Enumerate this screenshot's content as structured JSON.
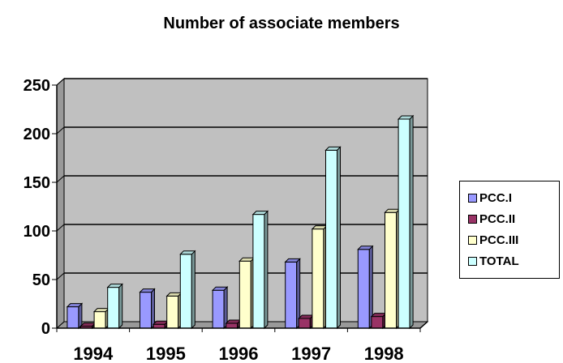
{
  "chart_data": {
    "type": "bar",
    "title": "Number of associate members",
    "categories": [
      "1994",
      "1995",
      "1996",
      "1997",
      "1998"
    ],
    "series": [
      {
        "name": "PCC.I",
        "color": "#9999FF",
        "values": [
          22,
          37,
          39,
          68,
          81
        ]
      },
      {
        "name": "PCC.II",
        "color": "#993366",
        "values": [
          2,
          4,
          5,
          10,
          12
        ]
      },
      {
        "name": "PCC.III",
        "color": "#FFFFCC",
        "values": [
          17,
          33,
          69,
          102,
          119
        ]
      },
      {
        "name": "TOTAL",
        "color": "#CCFFFF",
        "values": [
          42,
          76,
          117,
          183,
          215
        ]
      }
    ],
    "ylim": [
      0,
      250
    ],
    "yticks": [
      "0",
      "50",
      "100",
      "150",
      "200",
      "250"
    ],
    "grid": true,
    "legend_position": "right",
    "plot_background": "#C0C0C0"
  }
}
